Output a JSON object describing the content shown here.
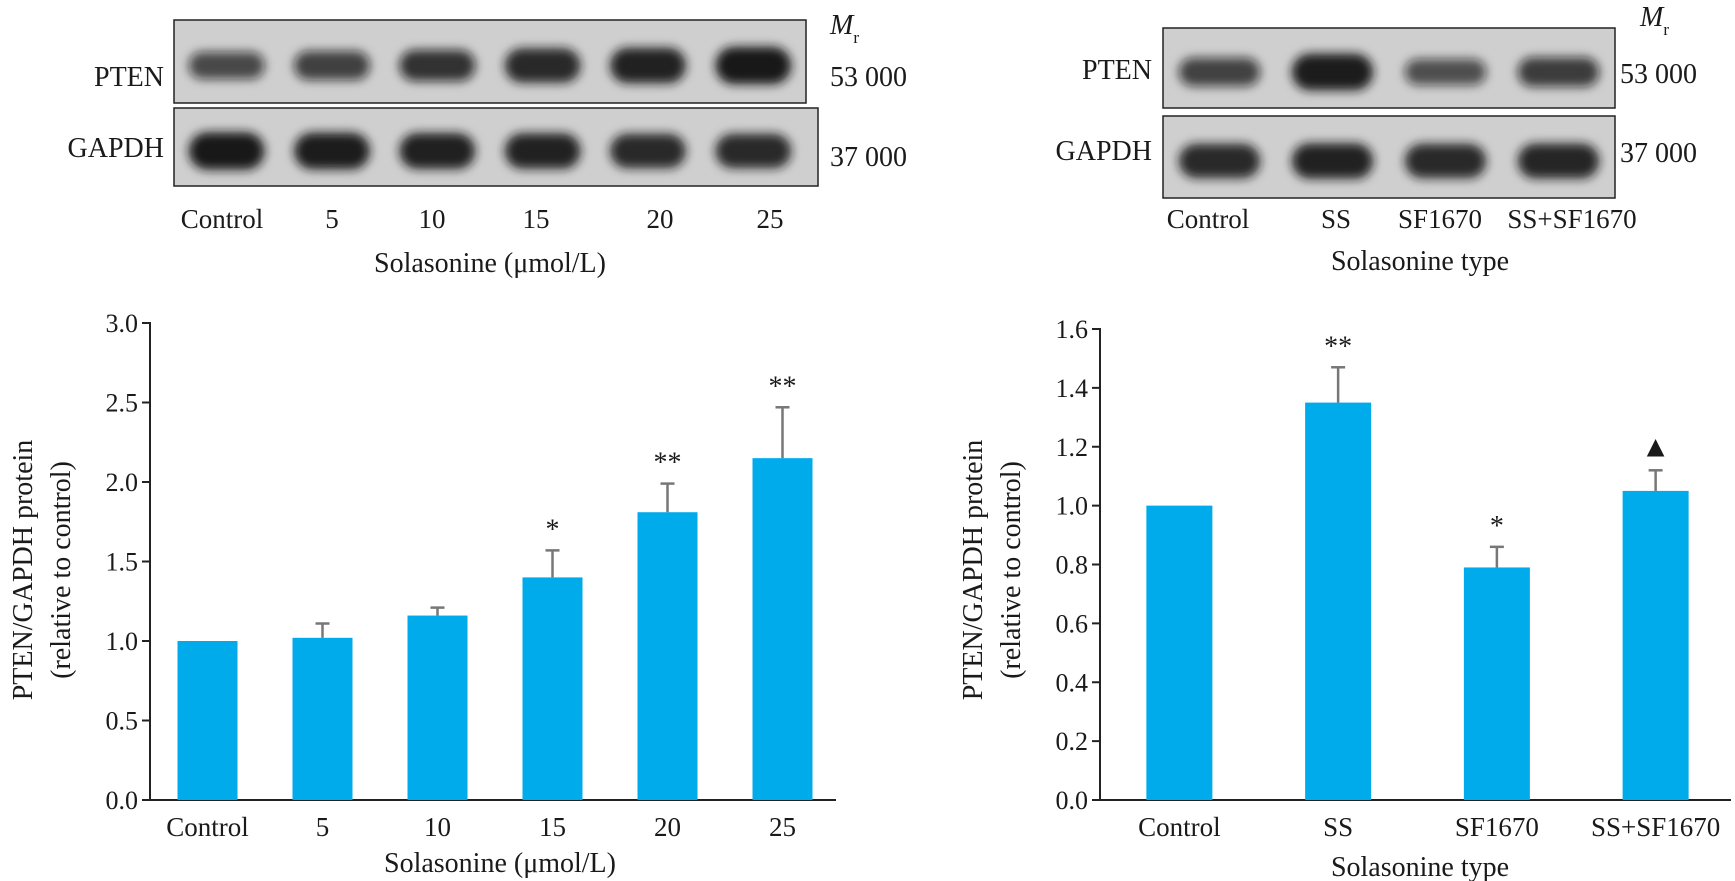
{
  "colors": {
    "bar": "#00ABEB",
    "error_bar": "#777777",
    "axis": "#222222",
    "blot_bg": "#cfcfcf",
    "band": "#141414"
  },
  "blots": [
    {
      "lanes": [
        "Control",
        "5",
        "10",
        "15",
        "20",
        "25"
      ],
      "xlabel": "Solasonine (μmol/L)",
      "mr_symbol": "M",
      "mr_subscript": "r",
      "rows": [
        {
          "protein": "PTEN",
          "mr": "53 000",
          "intensity": [
            0.55,
            0.62,
            0.72,
            0.85,
            0.9,
            0.98
          ]
        },
        {
          "protein": "GAPDH",
          "mr": "37 000",
          "intensity": [
            0.98,
            0.95,
            0.92,
            0.9,
            0.85,
            0.85
          ]
        }
      ]
    },
    {
      "lanes": [
        "Control",
        "SS",
        "SF1670",
        "SS+SF1670"
      ],
      "xlabel": "Solasonine type",
      "mr_symbol": "M",
      "mr_subscript": "r",
      "rows": [
        {
          "protein": "PTEN",
          "mr": "53 000",
          "intensity": [
            0.6,
            0.95,
            0.5,
            0.65
          ]
        },
        {
          "protein": "GAPDH",
          "mr": "37 000",
          "intensity": [
            0.85,
            0.9,
            0.85,
            0.88
          ]
        }
      ]
    }
  ],
  "chart_data": [
    {
      "type": "bar",
      "categories": [
        "Control",
        "5",
        "10",
        "15",
        "20",
        "25"
      ],
      "values": [
        1.0,
        1.02,
        1.16,
        1.4,
        1.81,
        2.15
      ],
      "errors": [
        0.0,
        0.09,
        0.05,
        0.17,
        0.18,
        0.32
      ],
      "annotations": [
        "",
        "",
        "",
        "*",
        "**",
        "**"
      ],
      "yticks": [
        "0.0",
        "0.5",
        "1.0",
        "1.5",
        "2.0",
        "2.5",
        "3.0"
      ],
      "ylim": [
        0,
        3.0
      ],
      "xlabel": "Solasonine (μmol/L)",
      "ylabel": "PTEN/GAPDH protein",
      "ylabel2": "(relative to control)",
      "grid": false
    },
    {
      "type": "bar",
      "categories": [
        "Control",
        "SS",
        "SF1670",
        "SS+SF1670"
      ],
      "values": [
        1.0,
        1.35,
        0.79,
        1.05
      ],
      "errors": [
        0.0,
        0.12,
        0.07,
        0.07
      ],
      "annotations": [
        "",
        "**",
        "*",
        "▲"
      ],
      "yticks": [
        "0.0",
        "0.2",
        "0.4",
        "0.6",
        "0.8",
        "1.0",
        "1.2",
        "1.4",
        "1.6"
      ],
      "ylim": [
        0,
        1.6
      ],
      "xlabel": "Solasonine type",
      "ylabel": "PTEN/GAPDH protein",
      "ylabel2": "(relative to control)",
      "grid": false
    }
  ]
}
